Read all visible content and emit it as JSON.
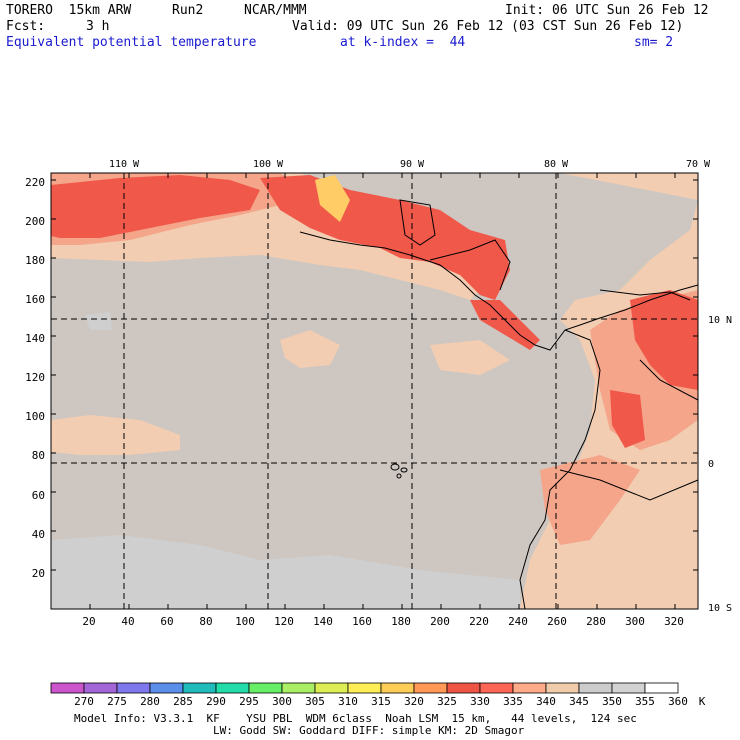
{
  "header": {
    "model": "TORERO  15km ARW",
    "run": "Run2",
    "org": "NCAR/MMM",
    "init": "Init: 06 UTC Sun 26 Feb 12",
    "fcst_label": "Fcst:",
    "fcst_value": "3 h",
    "valid": "Valid: 09 UTC Sun 26 Feb 12 (03 CST Sun 26 Feb 12)",
    "field": "Equivalent potential temperature",
    "level": "at k-index =  44",
    "smoothing": "sm= 2"
  },
  "map": {
    "lon_labels": [
      "110 W",
      "100 W",
      "90 W",
      "80 W",
      "70 W"
    ],
    "lat_labels": [
      "10 N",
      "0",
      "10 S"
    ],
    "y_ticks": [
      "20",
      "40",
      "60",
      "80",
      "100",
      "120",
      "140",
      "160",
      "180",
      "200",
      "220"
    ],
    "x_ticks": [
      "20",
      "40",
      "60",
      "80",
      "100",
      "120",
      "140",
      "160",
      "180",
      "200",
      "220",
      "240",
      "260",
      "280",
      "300",
      "320"
    ]
  },
  "colorbar": {
    "labels": [
      "270",
      "275",
      "280",
      "285",
      "290",
      "295",
      "300",
      "305",
      "310",
      "315",
      "320",
      "325",
      "330",
      "335",
      "340",
      "345",
      "350",
      "355",
      "360"
    ],
    "unit": "K",
    "colors": [
      "#cc55cc",
      "#a266d9",
      "#7f77ee",
      "#5b8ee8",
      "#22bbbb",
      "#22ddaa",
      "#66ee66",
      "#aaee66",
      "#ddee55",
      "#ffee55",
      "#ffcc55",
      "#ff9955",
      "#ee5544",
      "#ff6655",
      "#ffaa88",
      "#f0ccaa",
      "#cccccc",
      "#d2d2d2",
      "#ffffff"
    ]
  },
  "footer": {
    "line1": "Model Info: V3.3.1  KF    YSU PBL  WDM 6class  Noah LSM  15 km,   44 levels,  124 sec",
    "line2": "LW: Godd SW: Goddard DIFF: simple KM: 2D Smagor"
  }
}
